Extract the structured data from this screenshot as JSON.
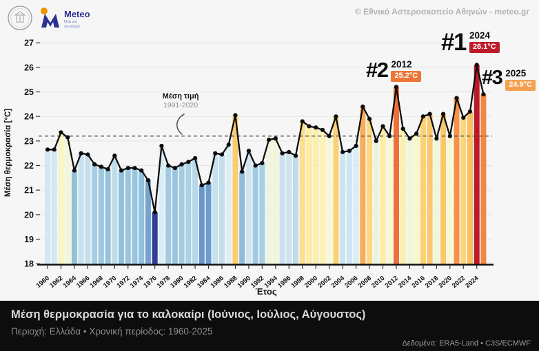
{
  "header": {
    "copyright": "© Εθνικό Αστεροσκοπείο Αθηνών - meteo.gr",
    "logo": {
      "brand": "Meteo",
      "tagline_line1": "Όλα για",
      "tagline_line2": "τον καιρό"
    }
  },
  "chart_data": {
    "type": "bar",
    "title": "Μέση θερμοκρασία για το καλοκαίρι (Ιούνιος, Ιούλιος, Αύγουστος)",
    "xlabel": "Έτος",
    "ylabel": "Μέση θερμοκρασία [°C]",
    "ylim": [
      18,
      27
    ],
    "grid": true,
    "x_tick_step": 2,
    "mean_line": {
      "value": 23.2,
      "label_line1": "Μέση τιμή",
      "label_line2": "1991-2020"
    },
    "years": [
      1960,
      1961,
      1962,
      1963,
      1964,
      1965,
      1966,
      1967,
      1968,
      1969,
      1970,
      1971,
      1972,
      1973,
      1974,
      1975,
      1976,
      1977,
      1978,
      1979,
      1980,
      1981,
      1982,
      1983,
      1984,
      1985,
      1986,
      1987,
      1988,
      1989,
      1990,
      1991,
      1992,
      1993,
      1994,
      1995,
      1996,
      1997,
      1998,
      1999,
      2000,
      2001,
      2002,
      2003,
      2004,
      2005,
      2006,
      2007,
      2008,
      2009,
      2010,
      2011,
      2012,
      2013,
      2014,
      2015,
      2016,
      2017,
      2018,
      2019,
      2020,
      2021,
      2022,
      2023,
      2024,
      2025
    ],
    "values": [
      22.65,
      22.65,
      23.35,
      23.15,
      21.8,
      22.5,
      22.45,
      22.05,
      21.95,
      21.85,
      22.4,
      21.8,
      21.9,
      21.9,
      21.8,
      21.4,
      20.1,
      22.8,
      22.0,
      21.9,
      22.05,
      22.15,
      22.3,
      21.2,
      21.3,
      22.5,
      22.45,
      22.85,
      24.05,
      21.75,
      22.6,
      22.0,
      22.1,
      23.05,
      23.1,
      22.5,
      22.55,
      22.4,
      23.8,
      23.6,
      23.55,
      23.45,
      23.2,
      24.0,
      22.55,
      22.6,
      22.8,
      24.4,
      23.9,
      23.0,
      23.6,
      23.2,
      25.2,
      23.5,
      23.1,
      23.3,
      24.0,
      24.1,
      23.1,
      24.1,
      23.2,
      24.75,
      23.95,
      24.2,
      26.1,
      24.9
    ],
    "annotations": [
      {
        "rank": "#1",
        "year": "2024",
        "value_label": "26.1°C",
        "badge_color": "#bf1a2a"
      },
      {
        "rank": "#2",
        "year": "2012",
        "value_label": "25.2°C",
        "badge_color": "#ee7637"
      },
      {
        "rank": "#3",
        "year": "2025",
        "value_label": "24.9°C",
        "badge_color": "#f5a04e"
      }
    ],
    "colormap_stops": [
      [
        20.1,
        "#333d99"
      ],
      [
        21.0,
        "#5b8ec6"
      ],
      [
        21.35,
        "#6fa0cf"
      ],
      [
        21.8,
        "#92c1dc"
      ],
      [
        22.0,
        "#a0cae2"
      ],
      [
        22.2,
        "#aed3e6"
      ],
      [
        22.4,
        "#c0dcea"
      ],
      [
        22.6,
        "#cfe6f1"
      ],
      [
        22.85,
        "#dceff5"
      ],
      [
        23.0,
        "#eaf3e0"
      ],
      [
        23.2,
        "#f8f8d3"
      ],
      [
        23.4,
        "#fcf4bb"
      ],
      [
        23.6,
        "#fdeca2"
      ],
      [
        23.8,
        "#fcdf8d"
      ],
      [
        24.0,
        "#fbd173"
      ],
      [
        24.2,
        "#f9c063"
      ],
      [
        24.45,
        "#f8a857"
      ],
      [
        24.8,
        "#f58e44"
      ],
      [
        25.2,
        "#ee7037"
      ],
      [
        25.7,
        "#d43b28"
      ],
      [
        26.1,
        "#bb1a28"
      ]
    ],
    "line_color": "#0d0d0d",
    "axis_color": "#111111",
    "grid_color": "#e4e4e4",
    "mean_line_color": "#4a4a4a"
  },
  "footer": {
    "title": "Μέση θερμοκρασία για το καλοκαίρι (Ιούνιος, Ιούλιος, Αύγουστος)",
    "subtitle": "Περιοχή: Ελλάδα • Χρονική περίοδος: 1960-2025",
    "source": "Δεδομένα: ERA5-Land • C3S/ECMWF"
  }
}
